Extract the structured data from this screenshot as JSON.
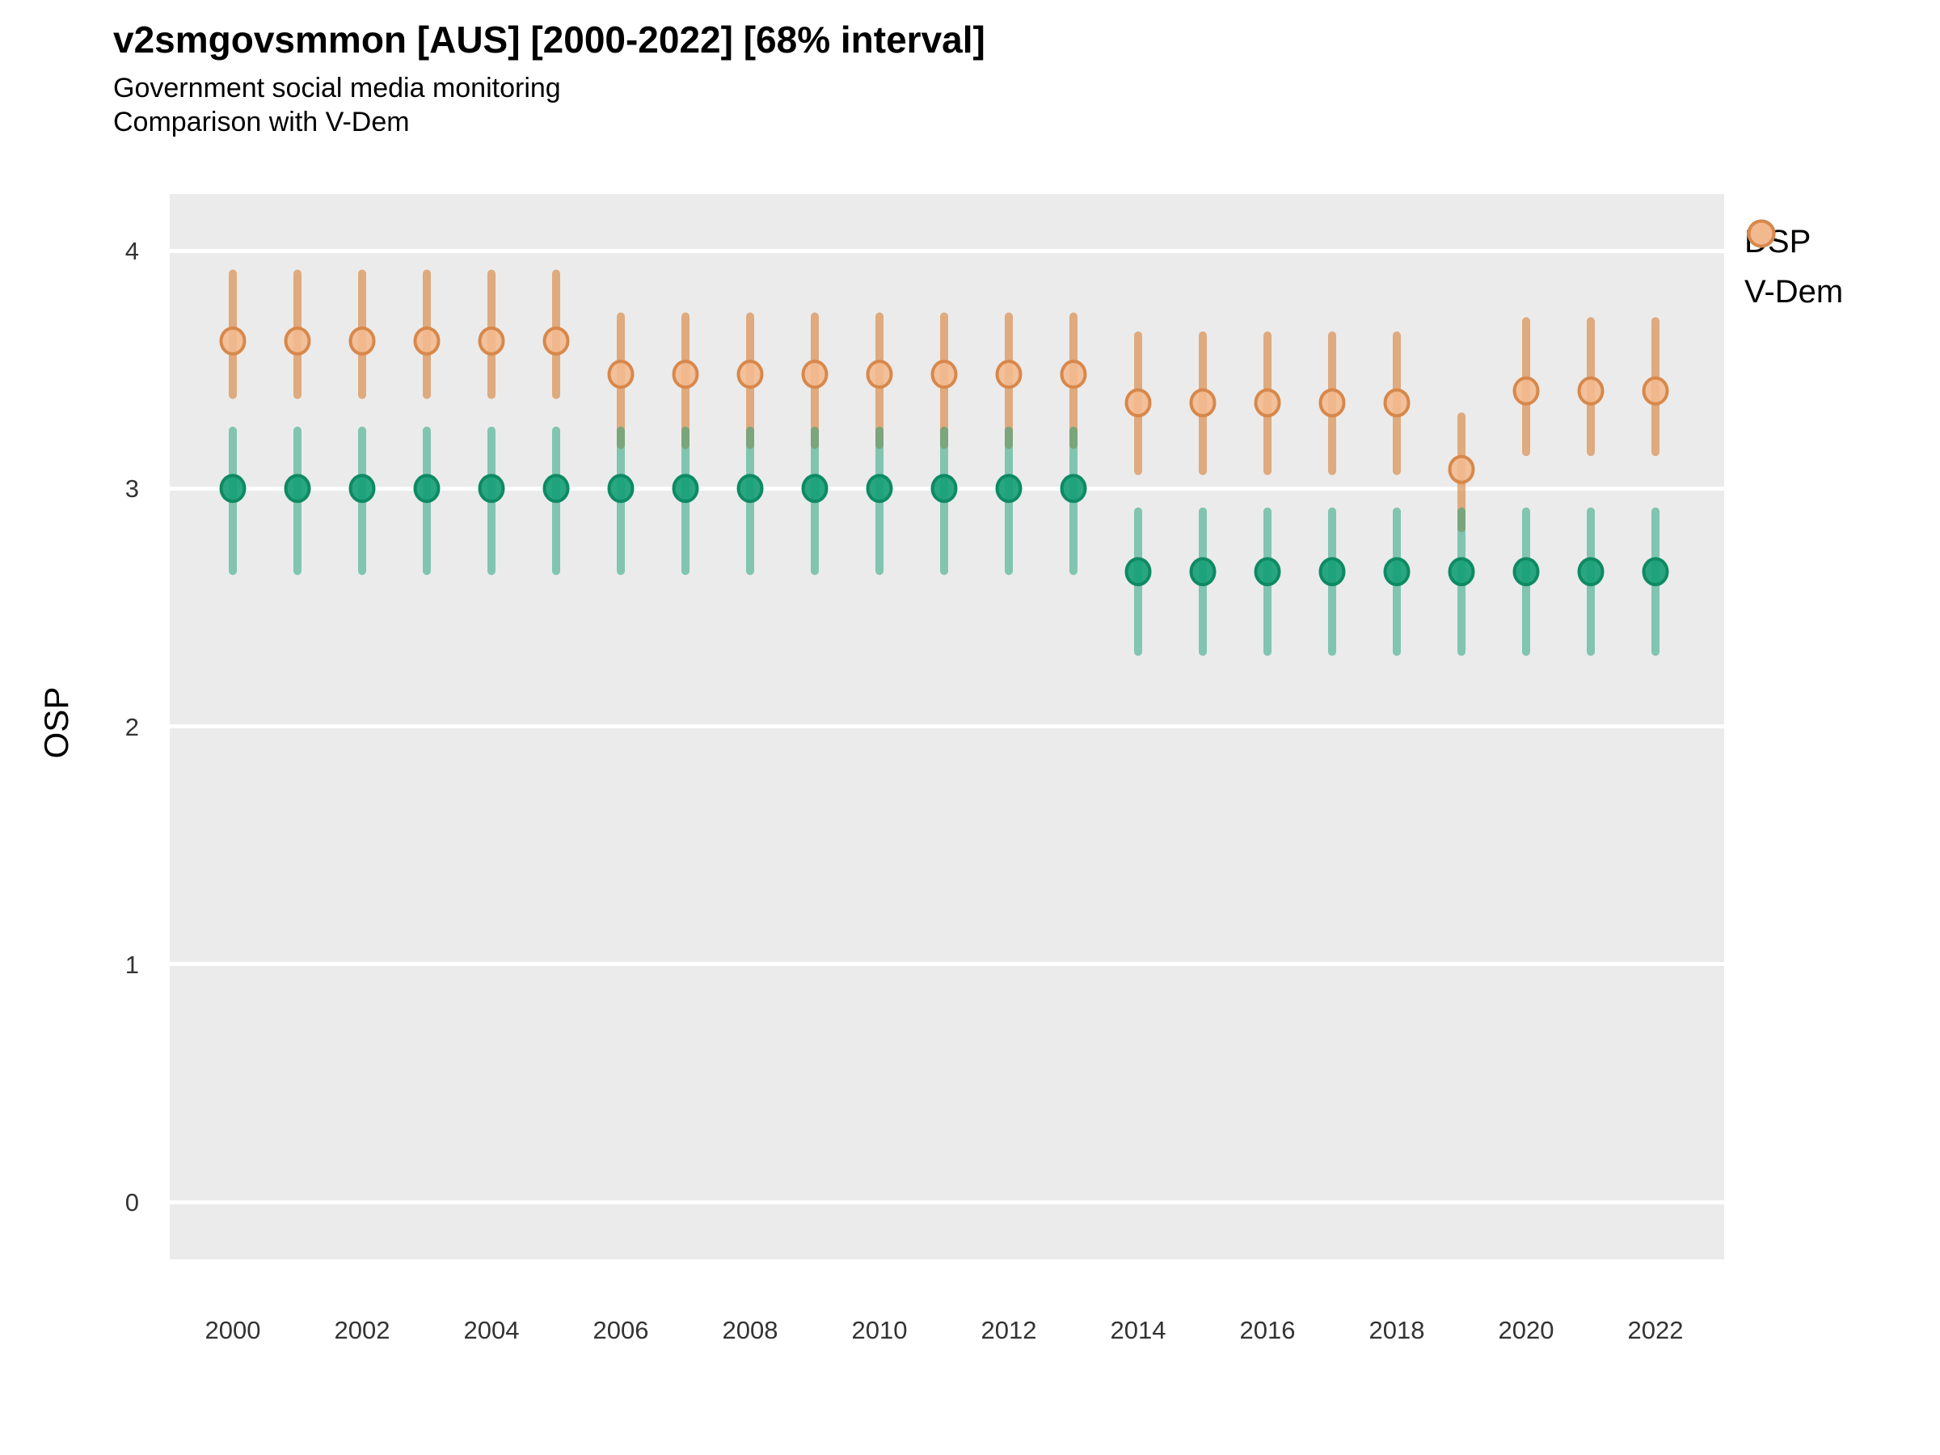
{
  "title": "v2smgovsmmon [AUS] [2000-2022] [68% interval]",
  "subtitle_line1": "Government social media monitoring",
  "subtitle_line2": "Comparison with V-Dem",
  "y_axis_title": "OSP",
  "legend": {
    "items": [
      {
        "label": "DSP"
      },
      {
        "label": "V-Dem"
      }
    ]
  },
  "colors": {
    "panel_background": "#EBEBEB",
    "gridline": "#FFFFFF",
    "dsp_marker_fill": "#17A077",
    "dsp_marker_stroke": "#0E8A63",
    "dsp_bar": "rgba(23,160,119,0.5)",
    "vdem_marker_fill": "#F2B98E",
    "vdem_marker_stroke": "#D8884B",
    "vdem_bar": "rgba(217,130,60,0.62)",
    "tick_label": "#333333",
    "text": "#000000"
  },
  "chart_data": {
    "type": "scatter",
    "title": "v2smgovsmmon [AUS] [2000-2022] [68% interval]",
    "subtitle": [
      "Government social media monitoring",
      "Comparison with V-Dem"
    ],
    "xlabel": "",
    "ylabel": "OSP",
    "interval": "68%",
    "ylim": [
      -0.25,
      4.23
    ],
    "y_ticks": [
      0,
      1,
      2,
      3,
      4
    ],
    "x_ticks": [
      2000,
      2002,
      2004,
      2006,
      2008,
      2010,
      2012,
      2014,
      2016,
      2018,
      2020,
      2022
    ],
    "grid": "major-horizontal-only",
    "legend_position": "right-top",
    "years": [
      2000,
      2001,
      2002,
      2003,
      2004,
      2005,
      2006,
      2007,
      2008,
      2009,
      2010,
      2011,
      2012,
      2013,
      2014,
      2015,
      2016,
      2017,
      2018,
      2019,
      2020,
      2021,
      2022
    ],
    "series": [
      {
        "name": "DSP",
        "means": [
          3.0,
          3.0,
          3.0,
          3.0,
          3.0,
          3.0,
          3.0,
          3.0,
          3.0,
          3.0,
          3.0,
          3.0,
          3.0,
          3.0,
          2.65,
          2.65,
          2.65,
          2.65,
          2.65,
          2.65,
          2.65,
          2.65,
          2.65
        ],
        "lower": [
          2.67,
          2.67,
          2.67,
          2.67,
          2.67,
          2.67,
          2.67,
          2.67,
          2.67,
          2.67,
          2.67,
          2.67,
          2.67,
          2.67,
          2.33,
          2.33,
          2.33,
          2.33,
          2.33,
          2.33,
          2.33,
          2.33,
          2.33
        ],
        "upper": [
          3.26,
          3.26,
          3.26,
          3.26,
          3.26,
          3.26,
          3.26,
          3.26,
          3.26,
          3.26,
          3.26,
          3.26,
          3.26,
          3.26,
          2.92,
          2.92,
          2.92,
          2.92,
          2.92,
          2.92,
          2.92,
          2.92,
          2.92
        ]
      },
      {
        "name": "V-Dem",
        "means": [
          3.62,
          3.62,
          3.62,
          3.62,
          3.62,
          3.62,
          3.48,
          3.48,
          3.48,
          3.48,
          3.48,
          3.48,
          3.48,
          3.48,
          3.36,
          3.36,
          3.36,
          3.36,
          3.36,
          3.08,
          3.41,
          3.41,
          3.41
        ],
        "lower": [
          3.41,
          3.41,
          3.41,
          3.41,
          3.41,
          3.41,
          3.2,
          3.2,
          3.2,
          3.2,
          3.2,
          3.2,
          3.2,
          3.2,
          3.09,
          3.09,
          3.09,
          3.09,
          3.09,
          2.85,
          3.17,
          3.17,
          3.17
        ],
        "upper": [
          3.92,
          3.92,
          3.92,
          3.92,
          3.92,
          3.92,
          3.74,
          3.74,
          3.74,
          3.74,
          3.74,
          3.74,
          3.74,
          3.74,
          3.66,
          3.66,
          3.66,
          3.66,
          3.66,
          3.32,
          3.72,
          3.72,
          3.72
        ]
      }
    ]
  }
}
